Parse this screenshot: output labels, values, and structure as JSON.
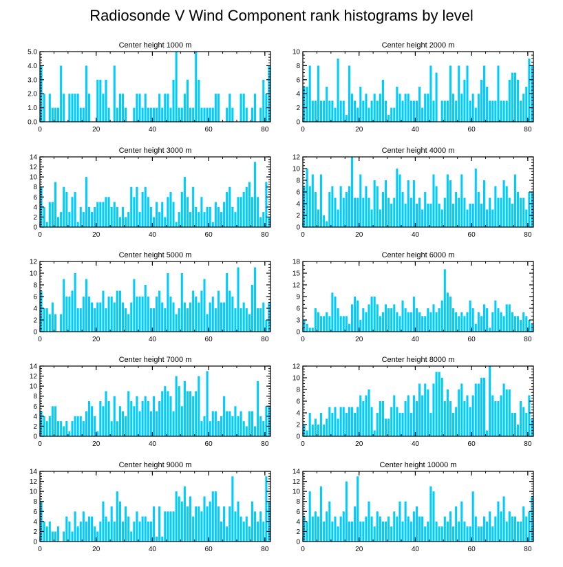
{
  "title": "Radiosonde V Wind Component rank histograms by level",
  "colors": {
    "bar": "#00ccff",
    "axis": "#000000",
    "background": "#ffffff"
  },
  "chart_data": [
    {
      "type": "bar",
      "title": "Center height 1000 m",
      "xlim": [
        0,
        82
      ],
      "ylim": [
        0,
        5
      ],
      "yticks": [
        0,
        1,
        2,
        3,
        4,
        5
      ],
      "ytick_labels": [
        "0.0",
        "1.0",
        "2.0",
        "3.0",
        "4.0",
        "5.0"
      ],
      "xticks": [
        0,
        20,
        40,
        60,
        80
      ],
      "xtick_labels": [
        "0",
        "20",
        "40",
        "60",
        "80"
      ],
      "values": [
        4,
        2,
        0,
        2,
        1,
        1,
        1,
        4,
        2,
        0,
        2,
        2,
        2,
        2,
        1,
        1,
        4,
        2,
        0,
        0,
        3,
        3,
        2,
        3,
        1,
        0,
        4,
        1,
        2,
        2,
        1,
        0,
        0,
        1,
        2,
        2,
        1,
        2,
        1,
        1,
        1,
        1,
        2,
        1,
        2,
        2,
        1,
        3,
        5,
        1,
        1,
        2,
        3,
        1,
        1,
        5,
        3,
        1,
        1,
        1,
        1,
        1,
        2,
        2,
        0,
        0,
        1,
        2,
        1,
        0,
        0,
        2,
        2,
        1,
        0,
        1,
        2,
        0,
        1,
        3,
        2,
        4
      ]
    },
    {
      "type": "bar",
      "title": "Center height 2000 m",
      "xlim": [
        0,
        82
      ],
      "ylim": [
        0,
        10
      ],
      "yticks": [
        0,
        2,
        4,
        6,
        8,
        10
      ],
      "ytick_labels": [
        "0",
        "2",
        "4",
        "6",
        "8",
        "10"
      ],
      "xticks": [
        0,
        20,
        40,
        60,
        80
      ],
      "xtick_labels": [
        "0",
        "20",
        "40",
        "60",
        "80"
      ],
      "values": [
        5,
        5,
        8,
        3,
        3,
        8,
        3,
        3,
        5,
        3,
        3,
        2,
        9,
        3,
        3,
        1,
        8,
        4,
        3,
        2,
        5,
        3,
        4,
        2,
        3,
        4,
        3,
        4,
        6,
        3,
        1,
        2,
        2,
        5,
        4,
        3,
        4,
        4,
        3,
        3,
        3,
        5,
        2,
        4,
        4,
        8,
        3,
        7,
        0,
        3,
        3,
        3,
        8,
        4,
        3,
        8,
        4,
        6,
        8,
        3,
        4,
        2,
        4,
        6,
        8,
        5,
        3,
        3,
        3,
        8,
        3,
        3,
        3,
        6,
        7,
        7,
        6,
        3,
        4,
        5,
        9,
        8
      ]
    },
    {
      "type": "bar",
      "title": "Center height 3000 m",
      "xlim": [
        0,
        82
      ],
      "ylim": [
        0,
        14
      ],
      "yticks": [
        0,
        2,
        4,
        6,
        8,
        10,
        12,
        14
      ],
      "ytick_labels": [
        "0",
        "2",
        "4",
        "6",
        "8",
        "10",
        "12",
        "14"
      ],
      "xticks": [
        0,
        20,
        40,
        60,
        80
      ],
      "xtick_labels": [
        "0",
        "20",
        "40",
        "60",
        "80"
      ],
      "values": [
        8,
        4,
        1,
        5,
        5,
        9,
        2,
        3,
        8,
        7,
        3,
        6,
        7,
        1,
        4,
        3,
        10,
        4,
        3,
        4,
        5,
        5,
        5,
        6,
        6,
        4,
        5,
        4,
        2,
        4,
        2,
        3,
        8,
        6,
        8,
        3,
        7,
        8,
        6,
        4,
        2,
        5,
        3,
        5,
        2,
        6,
        7,
        5,
        1,
        3,
        7,
        10,
        6,
        3,
        8,
        4,
        3,
        6,
        3,
        4,
        4,
        1,
        5,
        4,
        3,
        5,
        7,
        8,
        4,
        3,
        6,
        6,
        7,
        8,
        9,
        6,
        13,
        6,
        2,
        3,
        9,
        2
      ]
    },
    {
      "type": "bar",
      "title": "Center height 4000 m",
      "xlim": [
        0,
        82
      ],
      "ylim": [
        0,
        12
      ],
      "yticks": [
        0,
        2,
        4,
        6,
        8,
        10,
        12
      ],
      "ytick_labels": [
        "0",
        "2",
        "4",
        "6",
        "8",
        "10",
        "12"
      ],
      "xticks": [
        0,
        20,
        40,
        60,
        80
      ],
      "xtick_labels": [
        "0",
        "20",
        "40",
        "60",
        "80"
      ],
      "values": [
        7,
        10,
        7,
        9,
        6,
        3,
        9,
        2,
        1,
        6,
        7,
        5,
        3,
        7,
        5,
        6,
        7,
        12,
        5,
        5,
        9,
        5,
        7,
        5,
        3,
        8,
        7,
        3,
        6,
        8,
        5,
        4,
        5,
        10,
        9,
        6,
        4,
        8,
        5,
        8,
        4,
        5,
        3,
        6,
        4,
        4,
        9,
        7,
        4,
        3,
        5,
        9,
        8,
        4,
        6,
        5,
        9,
        5,
        3,
        4,
        4,
        10,
        6,
        4,
        8,
        3,
        5,
        3,
        7,
        5,
        5,
        8,
        7,
        5,
        4,
        9,
        6,
        5,
        5,
        3,
        6,
        6
      ]
    },
    {
      "type": "bar",
      "title": "Center height 5000 m",
      "xlim": [
        0,
        82
      ],
      "ylim": [
        0,
        12
      ],
      "yticks": [
        0,
        2,
        4,
        6,
        8,
        10,
        12
      ],
      "ytick_labels": [
        "0",
        "2",
        "4",
        "6",
        "8",
        "10",
        "12"
      ],
      "xticks": [
        0,
        20,
        40,
        60,
        80
      ],
      "xtick_labels": [
        "0",
        "20",
        "40",
        "60",
        "80"
      ],
      "values": [
        7,
        4,
        4,
        3,
        5,
        3,
        0,
        3,
        9,
        6,
        6,
        7,
        10,
        4,
        4,
        6,
        9,
        6,
        5,
        4,
        5,
        5,
        7,
        4,
        6,
        6,
        5,
        7,
        7,
        5,
        4,
        3,
        5,
        9,
        6,
        6,
        6,
        8,
        6,
        4,
        4,
        6,
        7,
        5,
        4,
        10,
        6,
        5,
        3,
        4,
        10,
        5,
        4,
        5,
        7,
        6,
        5,
        7,
        9,
        3,
        5,
        6,
        4,
        7,
        5,
        5,
        10,
        7,
        6,
        4,
        11,
        4,
        5,
        4,
        3,
        8,
        11,
        4,
        4,
        5,
        2,
        5
      ]
    },
    {
      "type": "bar",
      "title": "Center height 6000 m",
      "xlim": [
        0,
        82
      ],
      "ylim": [
        0,
        18
      ],
      "yticks": [
        0,
        3,
        6,
        9,
        12,
        15,
        18
      ],
      "ytick_labels": [
        "0",
        "3",
        "6",
        "9",
        "12",
        "15",
        "18"
      ],
      "xticks": [
        0,
        20,
        40,
        60,
        80
      ],
      "xtick_labels": [
        "0",
        "20",
        "40",
        "60",
        "80"
      ],
      "values": [
        3,
        2,
        1,
        1,
        6,
        5,
        4,
        4,
        5,
        4,
        10,
        9,
        6,
        4,
        4,
        4,
        2,
        7,
        9,
        8,
        3,
        6,
        5,
        7,
        9,
        9,
        7,
        4,
        5,
        7,
        6,
        6,
        7,
        5,
        4,
        8,
        6,
        5,
        5,
        9,
        6,
        5,
        4,
        4,
        6,
        5,
        7,
        5,
        6,
        8,
        16,
        10,
        9,
        6,
        5,
        4,
        5,
        4,
        5,
        8,
        6,
        2,
        5,
        4,
        7,
        6,
        1,
        5,
        8,
        6,
        5,
        4,
        7,
        7,
        5,
        4,
        4,
        3,
        5,
        4,
        3,
        2
      ]
    },
    {
      "type": "bar",
      "title": "Center height 7000 m",
      "xlim": [
        0,
        82
      ],
      "ylim": [
        0,
        14
      ],
      "yticks": [
        0,
        2,
        4,
        6,
        8,
        10,
        12,
        14
      ],
      "ytick_labels": [
        "0",
        "2",
        "4",
        "6",
        "8",
        "10",
        "12",
        "14"
      ],
      "xticks": [
        0,
        20,
        40,
        60,
        80
      ],
      "xtick_labels": [
        "0",
        "20",
        "40",
        "60",
        "80"
      ],
      "values": [
        5,
        4,
        3,
        4,
        6,
        6,
        3,
        3,
        2,
        3,
        1,
        3,
        4,
        4,
        4,
        3,
        5,
        7,
        6,
        4,
        1,
        7,
        6,
        9,
        7,
        3,
        8,
        3,
        6,
        5,
        4,
        9,
        7,
        6,
        8,
        5,
        7,
        8,
        7,
        5,
        8,
        5,
        7,
        9,
        10,
        9,
        8,
        5,
        12,
        10,
        6,
        11,
        9,
        9,
        8,
        9,
        12,
        3,
        4,
        13,
        3,
        5,
        5,
        3,
        4,
        8,
        5,
        5,
        4,
        6,
        4,
        5,
        3,
        2,
        5,
        5,
        2,
        11,
        4,
        3,
        6,
        6
      ]
    },
    {
      "type": "bar",
      "title": "Center height 8000 m",
      "xlim": [
        0,
        82
      ],
      "ylim": [
        0,
        12
      ],
      "yticks": [
        0,
        2,
        4,
        6,
        8,
        10,
        12
      ],
      "ytick_labels": [
        "0",
        "2",
        "4",
        "6",
        "8",
        "10",
        "12"
      ],
      "xticks": [
        0,
        20,
        40,
        60,
        80
      ],
      "xtick_labels": [
        "0",
        "20",
        "40",
        "60",
        "80"
      ],
      "values": [
        2,
        1,
        4,
        2,
        3,
        2,
        4,
        2,
        3,
        5,
        4,
        5,
        3,
        5,
        5,
        4,
        5,
        5,
        4,
        5,
        7,
        6,
        7,
        8,
        5,
        1,
        4,
        6,
        6,
        3,
        3,
        5,
        7,
        5,
        4,
        4,
        6,
        7,
        4,
        7,
        6,
        9,
        7,
        9,
        8,
        4,
        9,
        11,
        11,
        10,
        6,
        8,
        6,
        4,
        5,
        8,
        9,
        6,
        7,
        5,
        7,
        9,
        9,
        10,
        10,
        1,
        12,
        7,
        6,
        6,
        7,
        9,
        8,
        8,
        4,
        4,
        2,
        6,
        5,
        4,
        7,
        3
      ]
    },
    {
      "type": "bar",
      "title": "Center height 9000 m",
      "xlim": [
        0,
        82
      ],
      "ylim": [
        0,
        14
      ],
      "yticks": [
        0,
        2,
        4,
        6,
        8,
        10,
        12,
        14
      ],
      "ytick_labels": [
        "0",
        "2",
        "4",
        "6",
        "8",
        "10",
        "12",
        "14"
      ],
      "xticks": [
        0,
        20,
        40,
        60,
        80
      ],
      "xtick_labels": [
        "0",
        "20",
        "40",
        "60",
        "80"
      ],
      "values": [
        8,
        4,
        3,
        4,
        2,
        2,
        3,
        0,
        2,
        5,
        4,
        2,
        6,
        3,
        4,
        6,
        4,
        5,
        5,
        3,
        2,
        4,
        8,
        5,
        4,
        7,
        4,
        10,
        8,
        4,
        7,
        5,
        2,
        4,
        6,
        4,
        5,
        5,
        4,
        4,
        7,
        1,
        7,
        1,
        6,
        6,
        6,
        6,
        10,
        9,
        8,
        11,
        7,
        9,
        5,
        7,
        7,
        6,
        9,
        7,
        8,
        10,
        10,
        7,
        4,
        7,
        3,
        7,
        13,
        6,
        8,
        5,
        4,
        5,
        3,
        8,
        6,
        4,
        6,
        4,
        13,
        8
      ]
    },
    {
      "type": "bar",
      "title": "Center height 10000 m",
      "xlim": [
        0,
        82
      ],
      "ylim": [
        0,
        14
      ],
      "yticks": [
        0,
        2,
        4,
        6,
        8,
        10,
        12,
        14
      ],
      "ytick_labels": [
        "0",
        "2",
        "4",
        "6",
        "8",
        "10",
        "12",
        "14"
      ],
      "xticks": [
        0,
        20,
        40,
        60,
        80
      ],
      "xtick_labels": [
        "0",
        "20",
        "40",
        "60",
        "80"
      ],
      "values": [
        5,
        4,
        10,
        5,
        6,
        5,
        11,
        4,
        6,
        8,
        4,
        5,
        3,
        5,
        6,
        12,
        4,
        4,
        7,
        13,
        4,
        4,
        5,
        8,
        5,
        3,
        6,
        5,
        4,
        4,
        5,
        3,
        6,
        5,
        8,
        4,
        8,
        5,
        4,
        6,
        7,
        5,
        5,
        3,
        4,
        11,
        10,
        4,
        3,
        3,
        5,
        4,
        6,
        3,
        7,
        4,
        8,
        4,
        3,
        3,
        10,
        5,
        3,
        3,
        5,
        4,
        6,
        3,
        5,
        8,
        6,
        9,
        4,
        6,
        5,
        5,
        4,
        4,
        7,
        5,
        6,
        9
      ]
    }
  ]
}
